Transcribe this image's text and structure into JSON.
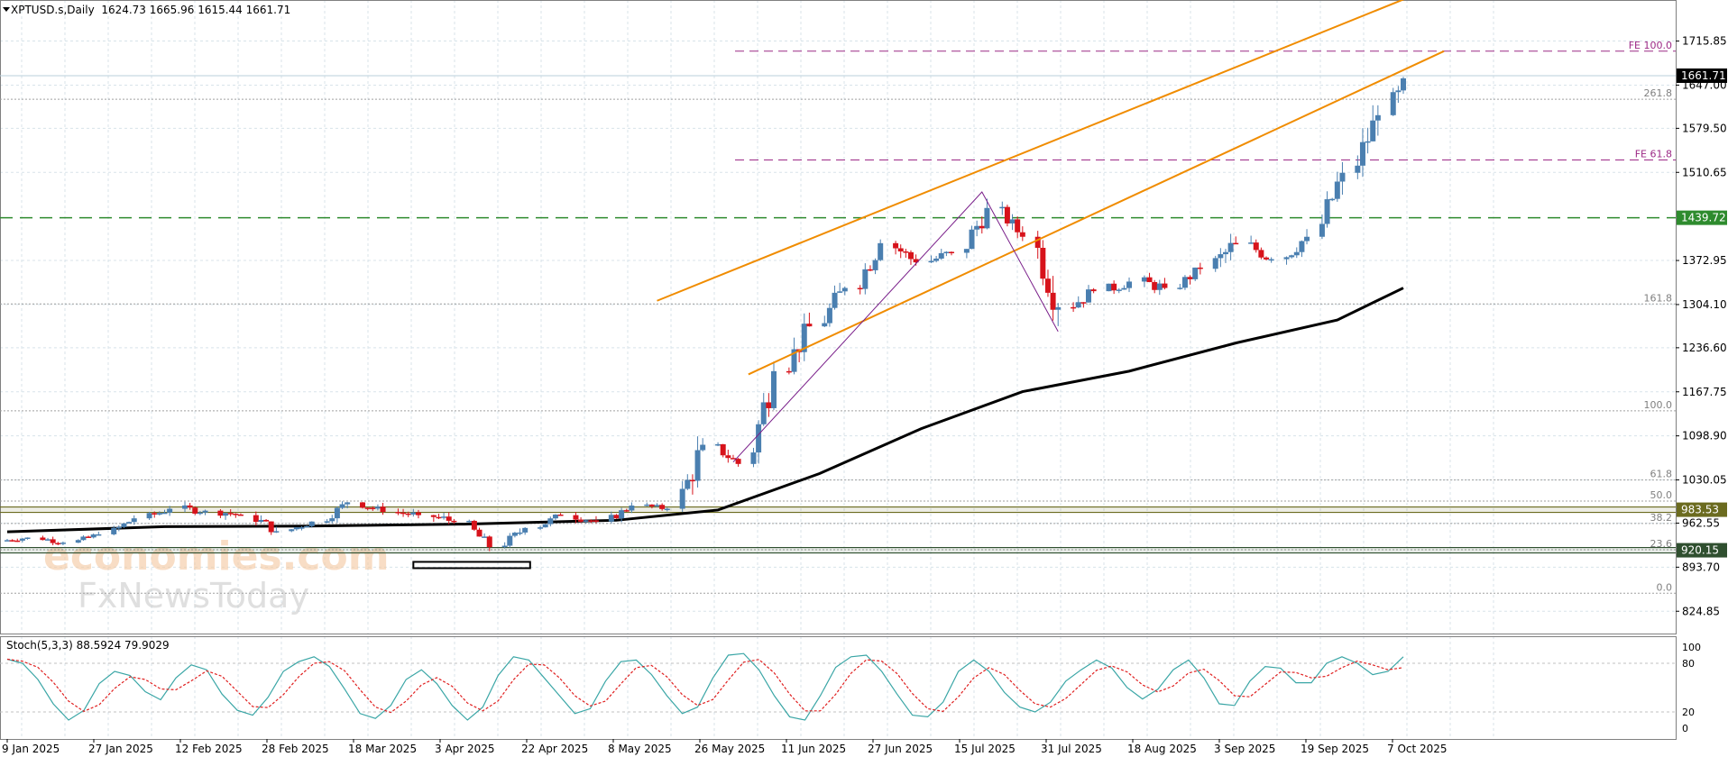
{
  "header": {
    "symbol": "XPTUSD.s,Daily",
    "ohlc": "1624.73 1665.96 1615.44 1661.71"
  },
  "price_axis": {
    "labels": [
      "1715.85",
      "1647.00",
      "1579.50",
      "1510.65",
      "1372.95",
      "1304.10",
      "1236.60",
      "1167.75",
      "1098.90",
      "1030.05",
      "962.55",
      "893.70",
      "824.85"
    ],
    "badges": [
      {
        "label": "1661.71",
        "value": 1661.71,
        "bg": "#000000",
        "fg": "#ffffff"
      },
      {
        "label": "1439.72",
        "value": 1439.72,
        "bg": "#2e8b2e",
        "fg": "#ffffff"
      },
      {
        "label": "983.53",
        "value": 983.53,
        "bg": "#6b6b1f",
        "fg": "#ffffff"
      },
      {
        "label": "920.15",
        "value": 920.15,
        "bg": "#2f4f2f",
        "fg": "#ffffff"
      }
    ]
  },
  "levels": {
    "fib": [
      {
        "label": "261.8",
        "value": 1625
      },
      {
        "label": "161.8",
        "value": 1305
      },
      {
        "label": "100.0",
        "value": 1138
      },
      {
        "label": "61.8",
        "value": 1030
      },
      {
        "label": "50.0",
        "value": 997
      },
      {
        "label": "38.2",
        "value": 962
      },
      {
        "label": "23.6",
        "value": 921
      },
      {
        "label": "0.0",
        "value": 853
      }
    ],
    "fe": [
      {
        "label": "FE 100.0",
        "value": 1700
      },
      {
        "label": "FE 61.8",
        "value": 1530
      }
    ],
    "support_green": 1439.72,
    "band_983": 983.53,
    "band_920": 920.15,
    "price_line": 1661.71
  },
  "watermark": {
    "line1": "economies.com",
    "line2": "FxNewsToday"
  },
  "stochastic": {
    "title": "Stoch(5,3,3) 88.5924 79.9029",
    "axis_labels": [
      "100",
      "80",
      "20",
      "0"
    ]
  },
  "time_axis": [
    "9 Jan 2025",
    "27 Jan 2025",
    "12 Feb 2025",
    "28 Feb 2025",
    "18 Mar 2025",
    "3 Apr 2025",
    "22 Apr 2025",
    "8 May 2025",
    "26 May 2025",
    "11 Jun 2025",
    "27 Jun 2025",
    "15 Jul 2025",
    "31 Jul 2025",
    "18 Aug 2025",
    "3 Sep 2025",
    "19 Sep 2025",
    "7 Oct 2025"
  ],
  "colors": {
    "bull": "#4a7fb0",
    "bear": "#d7131b",
    "ma": "#000000",
    "channel": "#f08c00",
    "fib": "#a0a0a0",
    "fe": "#9c2a86",
    "green": "#2e8b2e",
    "stoch_k": "#3aa6a6",
    "stoch_d": "#e02020",
    "grid": "#d8e3ea"
  },
  "chart_data": {
    "type": "candlestick",
    "title": "XPTUSD.s,Daily",
    "ylim": [
      790,
      1780
    ],
    "grid": true,
    "x_start": "2025-01-06",
    "x_end": "2025-10-08",
    "ohlc_sampled": [
      {
        "date": "2025-01-06",
        "o": 935,
        "h": 945,
        "l": 926,
        "c": 940
      },
      {
        "date": "2025-01-13",
        "o": 940,
        "h": 952,
        "l": 928,
        "c": 932
      },
      {
        "date": "2025-01-20",
        "o": 932,
        "h": 950,
        "l": 925,
        "c": 945
      },
      {
        "date": "2025-01-27",
        "o": 945,
        "h": 978,
        "l": 940,
        "c": 970
      },
      {
        "date": "2025-02-03",
        "o": 970,
        "h": 995,
        "l": 962,
        "c": 985
      },
      {
        "date": "2025-02-10",
        "o": 985,
        "h": 1010,
        "l": 975,
        "c": 982
      },
      {
        "date": "2025-02-17",
        "o": 982,
        "h": 995,
        "l": 958,
        "c": 975
      },
      {
        "date": "2025-02-24",
        "o": 975,
        "h": 985,
        "l": 940,
        "c": 950
      },
      {
        "date": "2025-03-03",
        "o": 950,
        "h": 975,
        "l": 942,
        "c": 965
      },
      {
        "date": "2025-03-10",
        "o": 965,
        "h": 1000,
        "l": 960,
        "c": 995
      },
      {
        "date": "2025-03-17",
        "o": 995,
        "h": 1012,
        "l": 975,
        "c": 980
      },
      {
        "date": "2025-03-24",
        "o": 980,
        "h": 995,
        "l": 962,
        "c": 975
      },
      {
        "date": "2025-03-31",
        "o": 975,
        "h": 998,
        "l": 955,
        "c": 965
      },
      {
        "date": "2025-04-07",
        "o": 965,
        "h": 968,
        "l": 915,
        "c": 925
      },
      {
        "date": "2025-04-14",
        "o": 925,
        "h": 960,
        "l": 920,
        "c": 955
      },
      {
        "date": "2025-04-21",
        "o": 955,
        "h": 985,
        "l": 950,
        "c": 975
      },
      {
        "date": "2025-04-28",
        "o": 975,
        "h": 1000,
        "l": 962,
        "c": 965
      },
      {
        "date": "2025-05-05",
        "o": 965,
        "h": 995,
        "l": 960,
        "c": 990
      },
      {
        "date": "2025-05-12",
        "o": 990,
        "h": 1000,
        "l": 975,
        "c": 985
      },
      {
        "date": "2025-05-19",
        "o": 985,
        "h": 1110,
        "l": 980,
        "c": 1085
      },
      {
        "date": "2025-05-26",
        "o": 1085,
        "h": 1100,
        "l": 1050,
        "c": 1055
      },
      {
        "date": "2025-06-02",
        "o": 1055,
        "h": 1215,
        "l": 1050,
        "c": 1200
      },
      {
        "date": "2025-06-09",
        "o": 1200,
        "h": 1300,
        "l": 1195,
        "c": 1270
      },
      {
        "date": "2025-06-16",
        "o": 1270,
        "h": 1345,
        "l": 1240,
        "c": 1330
      },
      {
        "date": "2025-06-23",
        "o": 1330,
        "h": 1420,
        "l": 1320,
        "c": 1400
      },
      {
        "date": "2025-06-30",
        "o": 1400,
        "h": 1425,
        "l": 1360,
        "c": 1370
      },
      {
        "date": "2025-07-07",
        "o": 1370,
        "h": 1395,
        "l": 1340,
        "c": 1385
      },
      {
        "date": "2025-07-14",
        "o": 1385,
        "h": 1480,
        "l": 1375,
        "c": 1455
      },
      {
        "date": "2025-07-21",
        "o": 1455,
        "h": 1465,
        "l": 1400,
        "c": 1410
      },
      {
        "date": "2025-07-28",
        "o": 1410,
        "h": 1420,
        "l": 1270,
        "c": 1300
      },
      {
        "date": "2025-08-04",
        "o": 1300,
        "h": 1340,
        "l": 1280,
        "c": 1325
      },
      {
        "date": "2025-08-11",
        "o": 1325,
        "h": 1360,
        "l": 1310,
        "c": 1340
      },
      {
        "date": "2025-08-18",
        "o": 1340,
        "h": 1355,
        "l": 1300,
        "c": 1330
      },
      {
        "date": "2025-08-25",
        "o": 1330,
        "h": 1370,
        "l": 1320,
        "c": 1360
      },
      {
        "date": "2025-09-01",
        "o": 1360,
        "h": 1450,
        "l": 1355,
        "c": 1400
      },
      {
        "date": "2025-09-08",
        "o": 1400,
        "h": 1415,
        "l": 1355,
        "c": 1375
      },
      {
        "date": "2025-09-15",
        "o": 1375,
        "h": 1430,
        "l": 1360,
        "c": 1410
      },
      {
        "date": "2025-09-22",
        "o": 1410,
        "h": 1530,
        "l": 1400,
        "c": 1510
      },
      {
        "date": "2025-09-29",
        "o": 1510,
        "h": 1635,
        "l": 1500,
        "c": 1600
      },
      {
        "date": "2025-10-06",
        "o": 1600,
        "h": 1670,
        "l": 1530,
        "c": 1661.71
      }
    ],
    "ma_sampled": [
      {
        "date": "2025-01-06",
        "v": 949
      },
      {
        "date": "2025-02-06",
        "v": 957
      },
      {
        "date": "2025-03-06",
        "v": 958
      },
      {
        "date": "2025-04-06",
        "v": 961
      },
      {
        "date": "2025-05-06",
        "v": 967
      },
      {
        "date": "2025-05-26",
        "v": 983
      },
      {
        "date": "2025-06-15",
        "v": 1040
      },
      {
        "date": "2025-07-05",
        "v": 1110
      },
      {
        "date": "2025-07-25",
        "v": 1168
      },
      {
        "date": "2025-08-15",
        "v": 1200
      },
      {
        "date": "2025-09-05",
        "v": 1244
      },
      {
        "date": "2025-09-25",
        "v": 1280
      },
      {
        "date": "2025-10-08",
        "v": 1330
      }
    ],
    "channel": {
      "lower": [
        {
          "date": "2025-06-01",
          "v": 1195
        },
        {
          "date": "2025-10-16",
          "v": 1700
        }
      ],
      "upper": [
        {
          "date": "2025-05-14",
          "v": 1310
        },
        {
          "date": "2025-10-14",
          "v": 1800
        }
      ]
    },
    "zigzag": [
      {
        "date": "2025-05-29",
        "v": 1058
      },
      {
        "date": "2025-07-17",
        "v": 1480
      },
      {
        "date": "2025-08-01",
        "v": 1262
      }
    ],
    "stochastic": {
      "k_name": "%K",
      "d_name": "%D",
      "current_k": 88.5924,
      "current_d": 79.9029,
      "k": [
        85,
        80,
        60,
        30,
        10,
        22,
        55,
        70,
        65,
        45,
        35,
        62,
        78,
        72,
        42,
        22,
        16,
        38,
        70,
        82,
        88,
        76,
        48,
        18,
        12,
        28,
        60,
        72,
        55,
        28,
        10,
        26,
        65,
        88,
        84,
        62,
        40,
        18,
        24,
        58,
        82,
        84,
        66,
        40,
        18,
        26,
        62,
        90,
        92,
        72,
        40,
        14,
        10,
        40,
        75,
        88,
        90,
        70,
        42,
        16,
        14,
        32,
        70,
        84,
        70,
        44,
        26,
        20,
        32,
        58,
        72,
        84,
        74,
        50,
        36,
        48,
        72,
        84,
        62,
        30,
        28,
        58,
        76,
        74,
        56,
        56,
        80,
        88,
        80,
        66,
        70,
        88
      ]
    }
  }
}
